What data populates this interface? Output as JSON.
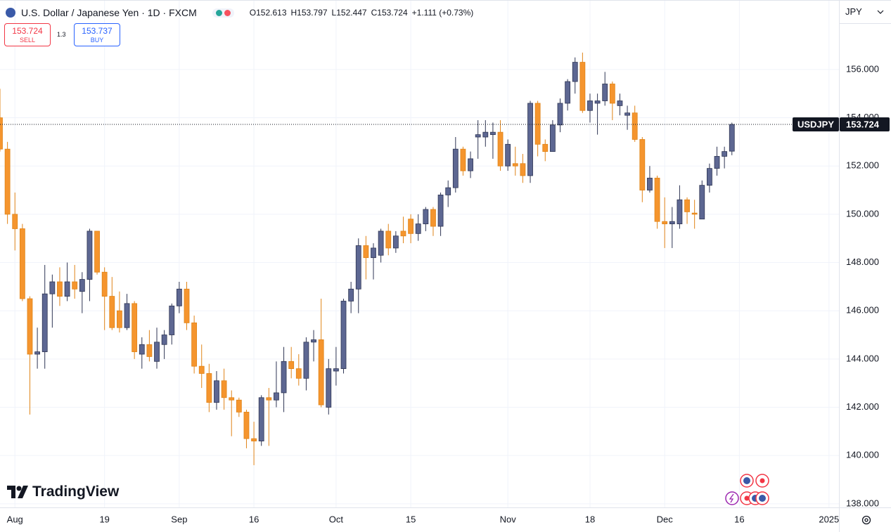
{
  "chart_data": {
    "type": "candlestick",
    "title": "U.S. Dollar / Japanese Yen · 1D · FXCM",
    "ohlc_header": [
      "O152.613",
      "H153.797",
      "L152.447",
      "C153.724",
      "+1.111 (+0.73%)"
    ],
    "currency": "JPY",
    "symbol": "USDJPY",
    "last_price": 153.724,
    "trade": {
      "sell": {
        "price": "153.724",
        "label": "SELL"
      },
      "spread": "1.3",
      "buy": {
        "price": "153.737",
        "label": "BUY"
      }
    },
    "logo": "TradingView",
    "up_color": "#5d6792",
    "down_color": "#f5952e",
    "grid": true,
    "ylim": [
      137.85,
      158.88
    ],
    "yticks": [
      {
        "value": 138,
        "label": "138.000"
      },
      {
        "value": 140,
        "label": "140.000"
      },
      {
        "value": 142,
        "label": "142.000"
      },
      {
        "value": 144,
        "label": "144.000"
      },
      {
        "value": 146,
        "label": "146.000"
      },
      {
        "value": 148,
        "label": "148.000"
      },
      {
        "value": 150,
        "label": "150.000"
      },
      {
        "value": 152,
        "label": "152.000"
      },
      {
        "value": 154,
        "label": "154.000"
      },
      {
        "value": 156,
        "label": "156.000"
      }
    ],
    "categories": [
      null,
      null,
      "Aug",
      null,
      null,
      null,
      null,
      null,
      null,
      null,
      null,
      null,
      null,
      null,
      "19",
      null,
      null,
      null,
      null,
      null,
      null,
      null,
      null,
      null,
      "Sep",
      null,
      null,
      null,
      null,
      null,
      null,
      null,
      null,
      null,
      "16",
      null,
      null,
      null,
      null,
      null,
      null,
      null,
      null,
      null,
      null,
      "Oct",
      null,
      null,
      null,
      null,
      null,
      null,
      null,
      null,
      null,
      "15",
      null,
      null,
      null,
      null,
      null,
      null,
      null,
      null,
      null,
      null,
      null,
      null,
      "Nov",
      null,
      null,
      null,
      null,
      null,
      null,
      null,
      null,
      null,
      null,
      "18",
      null,
      null,
      null,
      null,
      null,
      null,
      null,
      null,
      null,
      "Dec",
      null,
      null,
      null,
      null,
      null,
      null,
      null,
      null,
      null,
      "16",
      null,
      null,
      null,
      null,
      null,
      null,
      null,
      null,
      null,
      null,
      null,
      "2025"
    ],
    "open": [
      154.0,
      152.7,
      150.0,
      149.4,
      146.5,
      144.2,
      144.3,
      146.7,
      147.2,
      146.6,
      147.2,
      146.8,
      147.3,
      149.3,
      147.6,
      146.6,
      146.0,
      145.3,
      146.3,
      144.2,
      144.6,
      143.9,
      144.6,
      145.0,
      146.2,
      146.9,
      145.5,
      143.7,
      143.4,
      142.2,
      143.1,
      142.4,
      142.3,
      141.8,
      140.7,
      140.6,
      142.4,
      142.3,
      142.6,
      143.9,
      143.6,
      143.2,
      144.7,
      144.8,
      142.0,
      143.5,
      143.6,
      146.4,
      146.9,
      148.7,
      148.2,
      148.3,
      149.3,
      148.6,
      149.3,
      149.8,
      149.2,
      149.6,
      150.2,
      149.5,
      150.8,
      151.1,
      152.7,
      151.8,
      153.2,
      153.2,
      153.3,
      153.4,
      152.0,
      152.1,
      152.1,
      151.6,
      154.6,
      152.9,
      152.6,
      153.7,
      154.6,
      155.5,
      156.3,
      154.3,
      154.6,
      154.7,
      155.4,
      154.5,
      154.1,
      154.2,
      153.1,
      151.0,
      151.5,
      149.7,
      149.6,
      149.6,
      150.6,
      150.05,
      149.8,
      151.2,
      151.9,
      152.4,
      152.613,
      null,
      null,
      null,
      null,
      null,
      null,
      null,
      null,
      null,
      null,
      null,
      null,
      null
    ],
    "high": [
      155.2,
      153.0,
      150.9,
      149.6,
      146.6,
      145.3,
      147.9,
      147.5,
      147.8,
      148.0,
      147.9,
      147.6,
      149.4,
      149.3,
      147.8,
      147.4,
      146.8,
      146.7,
      146.4,
      144.9,
      145.2,
      145.3,
      145.2,
      146.3,
      147.2,
      147.2,
      145.8,
      144.6,
      143.8,
      143.5,
      143.6,
      142.7,
      142.4,
      141.9,
      141.4,
      142.5,
      142.8,
      143.9,
      144.5,
      144.5,
      144.2,
      144.9,
      145.2,
      146.5,
      144.0,
      144.5,
      146.5,
      147.2,
      149.0,
      149.1,
      148.8,
      149.4,
      149.6,
      149.3,
      149.9,
      150.0,
      150.0,
      150.3,
      150.3,
      150.9,
      151.4,
      153.2,
      152.8,
      152.6,
      153.9,
      153.9,
      153.8,
      153.9,
      153.1,
      152.8,
      152.5,
      154.7,
      154.7,
      153.1,
      153.9,
      154.8,
      155.6,
      156.5,
      156.7,
      155.0,
      155.0,
      155.9,
      155.5,
      155.0,
      154.5,
      154.5,
      153.2,
      152.0,
      151.6,
      150.7,
      150.3,
      151.2,
      150.7,
      150.6,
      151.4,
      152.1,
      152.8,
      152.8,
      153.797,
      null,
      null,
      null,
      null,
      null,
      null,
      null,
      null,
      null,
      null,
      null,
      null,
      null
    ],
    "low": [
      152.6,
      149.6,
      148.5,
      146.4,
      141.7,
      143.6,
      143.6,
      145.3,
      146.2,
      146.4,
      146.5,
      145.9,
      146.4,
      147.5,
      145.2,
      145.2,
      145.1,
      145.2,
      144.0,
      143.6,
      143.9,
      143.6,
      144.0,
      144.6,
      145.9,
      145.2,
      143.4,
      142.8,
      141.8,
      141.9,
      141.9,
      140.8,
      141.6,
      140.3,
      139.6,
      140.4,
      140.4,
      142.0,
      141.8,
      143.2,
      142.9,
      142.7,
      143.9,
      142.0,
      141.7,
      142.9,
      143.4,
      145.9,
      145.9,
      147.3,
      147.3,
      148.0,
      148.3,
      148.4,
      148.8,
      148.8,
      148.9,
      149.3,
      149.1,
      149.1,
      150.3,
      150.9,
      151.6,
      151.5,
      152.3,
      152.8,
      152.3,
      151.8,
      151.8,
      151.6,
      151.3,
      151.3,
      152.4,
      152.2,
      152.6,
      153.4,
      154.3,
      155.0,
      154.2,
      153.8,
      153.3,
      154.5,
      153.9,
      154.1,
      153.5,
      153.0,
      150.5,
      150.9,
      149.4,
      148.6,
      148.6,
      149.4,
      149.6,
      149.4,
      149.8,
      150.9,
      151.6,
      151.9,
      152.447,
      null,
      null,
      null,
      null,
      null,
      null,
      null,
      null,
      null,
      null,
      null,
      null,
      null
    ],
    "close": [
      152.7,
      150.0,
      149.4,
      146.5,
      144.2,
      144.3,
      146.7,
      147.2,
      146.6,
      147.2,
      146.9,
      147.3,
      149.3,
      147.6,
      146.6,
      145.3,
      145.3,
      146.3,
      144.3,
      144.6,
      144.1,
      144.7,
      145.0,
      146.2,
      146.9,
      145.5,
      143.7,
      143.4,
      142.2,
      143.1,
      142.4,
      142.3,
      141.8,
      140.7,
      140.6,
      142.4,
      142.3,
      142.6,
      143.9,
      143.6,
      143.2,
      144.7,
      144.8,
      142.1,
      143.6,
      143.6,
      146.4,
      146.9,
      148.7,
      148.2,
      148.6,
      149.3,
      148.6,
      149.1,
      149.1,
      149.2,
      149.6,
      150.2,
      149.5,
      150.8,
      151.1,
      152.7,
      151.8,
      152.3,
      153.3,
      153.4,
      153.4,
      152.0,
      152.9,
      152.0,
      151.6,
      154.6,
      152.9,
      152.6,
      153.7,
      154.6,
      155.5,
      156.3,
      154.3,
      154.7,
      154.7,
      155.4,
      154.6,
      154.7,
      154.2,
      153.1,
      151.0,
      151.5,
      149.7,
      149.6,
      149.7,
      150.6,
      150.1,
      150.0,
      151.2,
      151.9,
      152.4,
      152.6,
      153.724,
      null,
      null,
      null,
      null,
      null,
      null,
      null,
      null,
      null,
      null,
      null,
      null,
      null
    ]
  }
}
